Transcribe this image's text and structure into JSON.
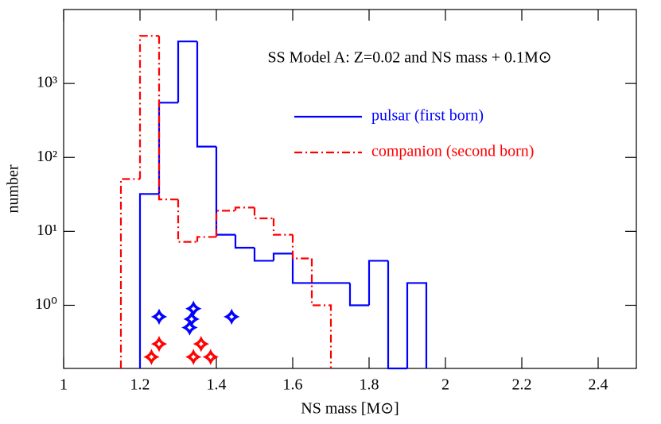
{
  "chart_data": {
    "type": "histogram",
    "title": "SS Model A: Z=0.02 and NS mass + 0.1M⊙",
    "x_label": "NS mass [M⊙]",
    "y_label": "number",
    "log_y": true,
    "xlim": [
      1,
      2.5
    ],
    "xticks": [
      1,
      1.2,
      1.4,
      1.6,
      1.8,
      2,
      2.2,
      2.4
    ],
    "ylim": [
      0.14,
      10000
    ],
    "yticks": [
      {
        "value": 1,
        "label": "10⁰"
      },
      {
        "value": 10,
        "label": "10¹"
      },
      {
        "value": 100,
        "label": "10²"
      },
      {
        "value": 1000,
        "label": "10³"
      }
    ],
    "series": [
      {
        "name": "pulsar (first born)",
        "color": "#0000ff",
        "dash": "solid",
        "bins": [
          1.2,
          1.25,
          1.3,
          1.35,
          1.4,
          1.45,
          1.5,
          1.55,
          1.6,
          1.65,
          1.7,
          1.75,
          1.8,
          1.85,
          1.9,
          1.95
        ],
        "values": [
          32,
          550,
          3700,
          140,
          9,
          6,
          4,
          5,
          2,
          2,
          2,
          1,
          4,
          0,
          2
        ]
      },
      {
        "name": "companion (second born)",
        "color": "#ff0000",
        "dash": "dashdot",
        "bins": [
          1.15,
          1.2,
          1.25,
          1.3,
          1.35,
          1.4,
          1.45,
          1.5,
          1.55,
          1.6,
          1.65,
          1.7
        ],
        "values": [
          51,
          4400,
          27,
          7.2,
          8.4,
          19,
          21,
          15,
          9,
          4.3,
          1
        ]
      }
    ],
    "points": [
      {
        "color": "#0000ff",
        "x": [
          1.25,
          1.34,
          1.335,
          1.33,
          1.44
        ],
        "values": [
          0.7,
          0.9,
          0.65,
          0.5,
          0.7
        ]
      },
      {
        "color": "#ff0000",
        "x": [
          1.23,
          1.25,
          1.34,
          1.36,
          1.385
        ],
        "values": [
          0.2,
          0.3,
          0.2,
          0.3,
          0.2
        ]
      }
    ]
  }
}
